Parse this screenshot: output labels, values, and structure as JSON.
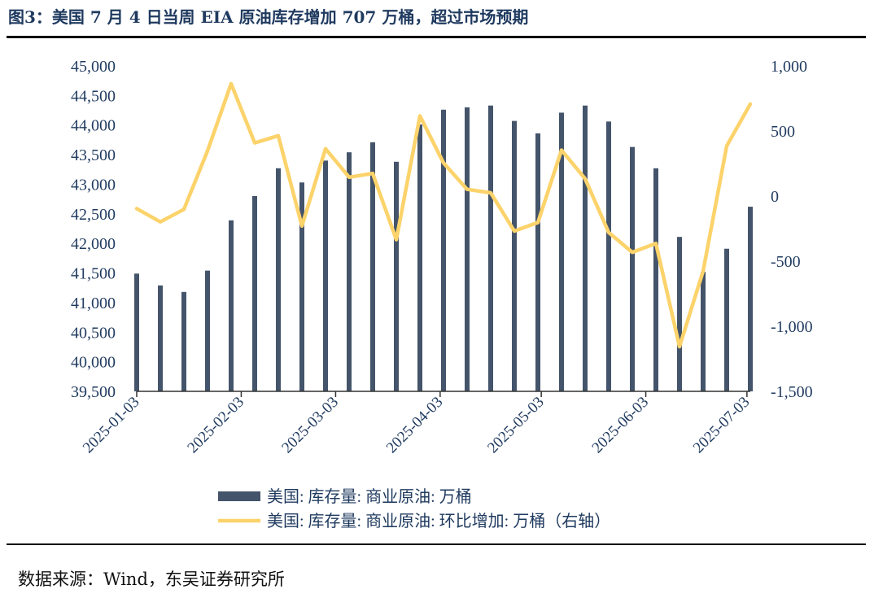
{
  "title": "图3：美国 7 月 4 日当周 EIA 原油库存增加 707 万桶，超过市场预期",
  "source": "数据来源：Wind，东吴证券研究所",
  "chart_data": {
    "type": "bar+line",
    "dates": [
      "2025-01-03",
      "2025-01-10",
      "2025-01-17",
      "2025-01-24",
      "2025-01-31",
      "2025-02-07",
      "2025-02-14",
      "2025-02-21",
      "2025-02-28",
      "2025-03-07",
      "2025-03-14",
      "2025-03-21",
      "2025-03-28",
      "2025-04-04",
      "2025-04-11",
      "2025-04-18",
      "2025-04-25",
      "2025-05-02",
      "2025-05-09",
      "2025-05-16",
      "2025-05-23",
      "2025-05-30",
      "2025-06-06",
      "2025-06-13",
      "2025-06-20",
      "2025-06-27",
      "2025-07-04"
    ],
    "x_tick_labels": [
      "2025-01-03",
      "2025-02-03",
      "2025-03-03",
      "2025-04-03",
      "2025-05-03",
      "2025-06-03",
      "2025-07-03"
    ],
    "x_tick_dates": [
      "2025-01-03",
      "2025-02-03",
      "2025-03-03",
      "2025-04-03",
      "2025-05-03",
      "2025-06-03",
      "2025-07-03"
    ],
    "series": [
      {
        "name": "美国: 库存量: 商业原油: 万桶",
        "type": "bar",
        "axis": "left",
        "color": "#44546a",
        "values": [
          41490,
          41290,
          41180,
          41540,
          42390,
          42800,
          43270,
          43030,
          43400,
          43540,
          43710,
          43380,
          44010,
          44260,
          44300,
          44330,
          44070,
          43860,
          44210,
          44330,
          44060,
          43630,
          43270,
          42110,
          41520,
          41910,
          42620
        ]
      },
      {
        "name": "美国: 库存量: 商业原油: 环比增加: 万桶（右轴）",
        "type": "line",
        "axis": "right",
        "color": "#fcd36b",
        "values": [
          -96,
          -198,
          -102,
          347,
          863,
          409,
          464,
          -230,
          364,
          145,
          174,
          -335,
          616,
          255,
          52,
          25,
          -269,
          -203,
          353,
          133,
          -280,
          -432,
          -364,
          -1157,
          -577,
          385,
          707
        ]
      }
    ],
    "y_left": {
      "min": 39500,
      "max": 45000,
      "ticks": [
        "39,500",
        "40,000",
        "40,500",
        "41,000",
        "41,500",
        "42,000",
        "42,500",
        "43,000",
        "43,500",
        "44,000",
        "44,500",
        "45,000"
      ]
    },
    "y_right": {
      "min": -1500,
      "max": 1000,
      "ticks": [
        "-1,500",
        "-1,000",
        "-500",
        "0",
        "500",
        "1,000"
      ]
    },
    "legend_position": "bottom"
  }
}
